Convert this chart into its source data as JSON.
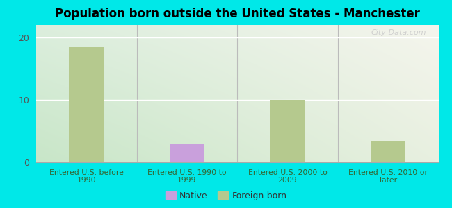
{
  "title": "Population born outside the United States - Manchester",
  "categories": [
    "Entered U.S. before\n1990",
    "Entered U.S. 1990 to\n1999",
    "Entered U.S. 2000 to\n2009",
    "Entered U.S. 2010 or\nlater"
  ],
  "bar_values": [
    18.5,
    3.0,
    10.0,
    3.5
  ],
  "bar_colors": [
    "#b5c98e",
    "#c9a0dc",
    "#b5c98e",
    "#b5c98e"
  ],
  "native_color": "#c9a0dc",
  "foreign_color": "#b5c98e",
  "background_outer": "#00e8e8",
  "background_top_left": "#c8e6c8",
  "background_top_right": "#e8f0e0",
  "background_bottom_left": "#dceedd",
  "background_bottom_right": "#f5f5ed",
  "ylim": [
    0,
    22
  ],
  "yticks": [
    0,
    10,
    20
  ],
  "bar_width": 0.35,
  "legend_native": "Native",
  "legend_foreign": "Foreign-born",
  "watermark": "City-Data.com",
  "xlabel_color": "#336633",
  "ytick_color": "#555555",
  "grid_color": "#ffffff",
  "separator_color": "#bbbbbb"
}
